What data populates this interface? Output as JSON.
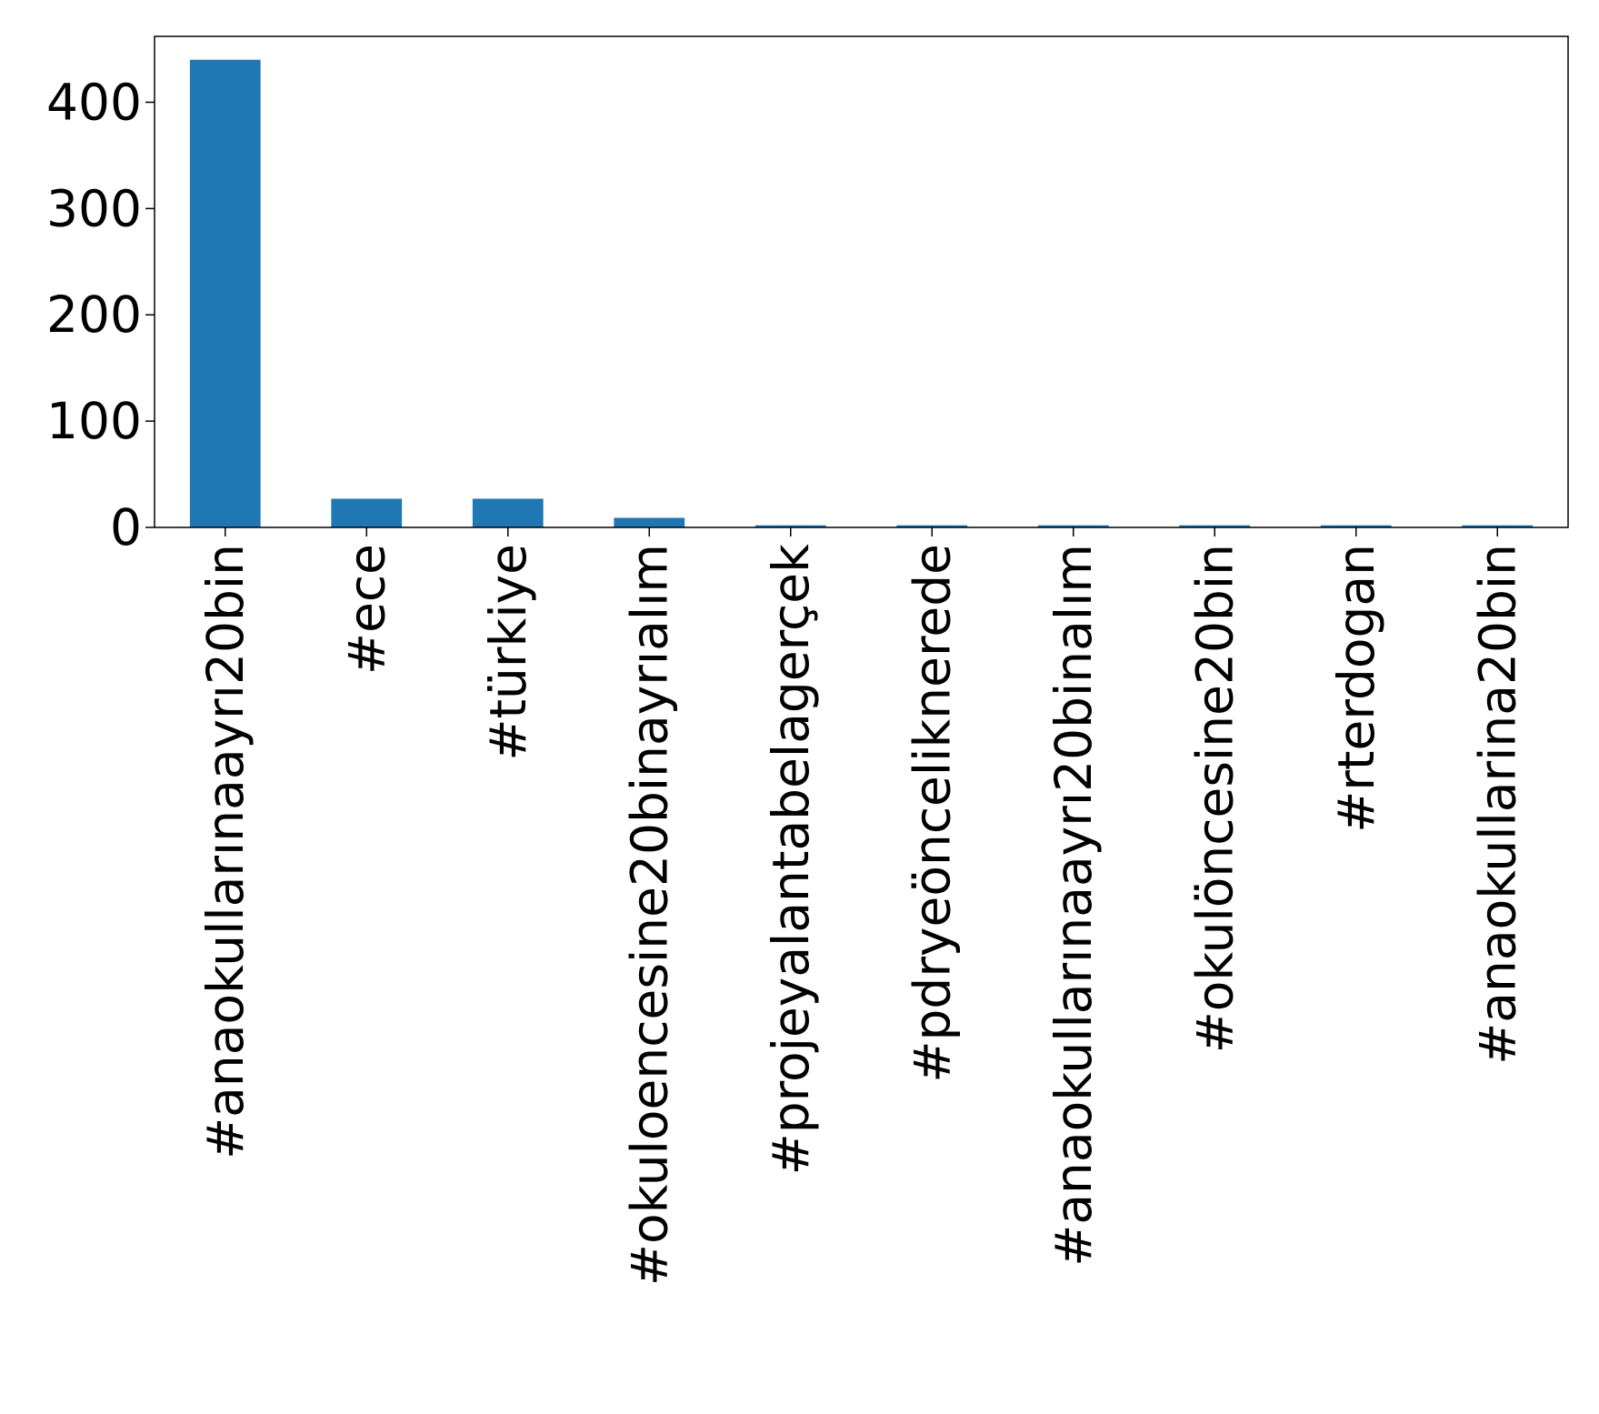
{
  "chart_data": {
    "type": "bar",
    "title": "",
    "xlabel": "",
    "ylabel": "",
    "categories": [
      "#anaokullarınaayrı20bin",
      "#ece",
      "#türkiye",
      "#okuloencesine20binayrıalım",
      "#projeyalantabelagerçek",
      "#pdryeöncelikneredе",
      "#anaokullarınaayrı20binalım",
      "#okulöncesine20bin",
      "#rterdogan",
      "#anaokullarina20bin"
    ],
    "values": [
      440,
      27,
      27,
      9,
      2,
      2,
      2,
      2,
      2,
      2
    ],
    "ylim": [
      0,
      462
    ],
    "yticks": [
      0,
      100,
      200,
      300,
      400
    ],
    "grid": false,
    "legend": "none",
    "bar_color": "#1f77b4"
  }
}
